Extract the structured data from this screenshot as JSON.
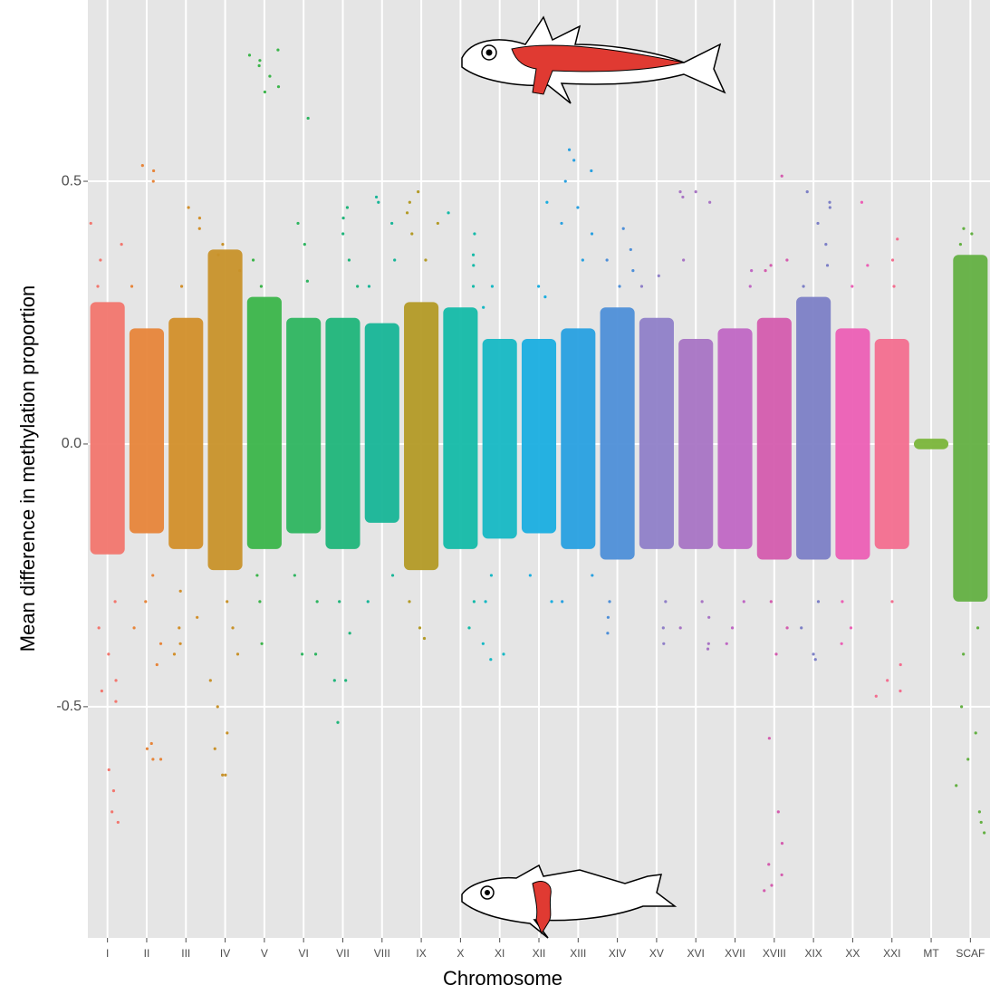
{
  "chart_data": {
    "type": "strip",
    "xlabel": "Chromosome",
    "ylabel": "Mean difference in methylation proportion",
    "categories": [
      "I",
      "II",
      "III",
      "IV",
      "V",
      "VI",
      "VII",
      "VIII",
      "IX",
      "X",
      "XI",
      "XII",
      "XIII",
      "XIV",
      "XV",
      "XVI",
      "XVII",
      "XVIII",
      "XIX",
      "XX",
      "XXI",
      "MT",
      "SCAF"
    ],
    "groups": [
      {
        "color": "#f2766e",
        "core": [
          -0.21,
          0.27
        ],
        "points": [
          0.42,
          0.38,
          0.35,
          0.3,
          -0.3,
          -0.4,
          -0.47,
          -0.49,
          -0.45,
          -0.62,
          -0.66,
          -0.7,
          -0.72,
          -0.35
        ]
      },
      {
        "color": "#e7853a",
        "core": [
          -0.17,
          0.22
        ],
        "points": [
          0.53,
          0.52,
          0.5,
          0.3,
          -0.25,
          -0.3,
          -0.38,
          -0.42,
          -0.35,
          -0.58,
          -0.6,
          -0.6,
          -0.57
        ]
      },
      {
        "color": "#d28f2a",
        "core": [
          -0.2,
          0.24
        ],
        "points": [
          0.45,
          0.43,
          0.41,
          0.3,
          -0.28,
          -0.33,
          -0.38,
          -0.4,
          -0.35
        ]
      },
      {
        "color": "#c8922a",
        "core": [
          -0.24,
          0.37
        ],
        "points": [
          0.38,
          0.36,
          0.33,
          -0.3,
          -0.35,
          -0.4,
          -0.45,
          -0.5,
          -0.55,
          -0.63,
          -0.63,
          -0.58
        ]
      },
      {
        "color": "#3bb54a",
        "core": [
          -0.2,
          0.28
        ],
        "points": [
          0.75,
          0.74,
          0.73,
          0.72,
          0.7,
          0.68,
          0.67,
          0.35,
          0.3,
          -0.25,
          -0.3,
          -0.38
        ]
      },
      {
        "color": "#2eb560",
        "core": [
          -0.17,
          0.24
        ],
        "points": [
          0.42,
          0.38,
          0.31,
          -0.25,
          -0.3,
          -0.4,
          -0.4,
          0.62
        ]
      },
      {
        "color": "#1fb57a",
        "core": [
          -0.2,
          0.24
        ],
        "points": [
          0.45,
          0.43,
          0.4,
          0.35,
          0.3,
          -0.3,
          -0.36,
          -0.45,
          -0.45,
          -0.53
        ]
      },
      {
        "color": "#17b597",
        "core": [
          -0.15,
          0.23
        ],
        "points": [
          0.47,
          0.46,
          0.42,
          0.35,
          0.3,
          -0.25,
          -0.3
        ]
      },
      {
        "color": "#b39a26",
        "core": [
          -0.24,
          0.27
        ],
        "points": [
          0.48,
          0.46,
          0.44,
          0.42,
          0.4,
          0.35,
          -0.3,
          -0.35,
          -0.37
        ]
      },
      {
        "color": "#14baa8",
        "core": [
          -0.2,
          0.26
        ],
        "points": [
          0.44,
          0.4,
          0.36,
          0.34,
          0.3,
          -0.3,
          -0.35
        ]
      },
      {
        "color": "#16b8c4",
        "core": [
          -0.18,
          0.2
        ],
        "points": [
          0.3,
          0.26,
          -0.25,
          -0.3,
          -0.38,
          -0.4,
          -0.41
        ]
      },
      {
        "color": "#1aaee0",
        "core": [
          -0.17,
          0.2
        ],
        "points": [
          0.46,
          0.3,
          0.28,
          -0.25,
          -0.3
        ]
      },
      {
        "color": "#28a0e0",
        "core": [
          -0.2,
          0.22
        ],
        "points": [
          0.56,
          0.54,
          0.52,
          0.5,
          0.45,
          0.42,
          0.4,
          0.35,
          -0.25,
          -0.3
        ]
      },
      {
        "color": "#4e8fd8",
        "core": [
          -0.22,
          0.26
        ],
        "points": [
          0.37,
          0.35,
          0.33,
          0.3,
          0.41,
          -0.3,
          -0.33,
          -0.36
        ]
      },
      {
        "color": "#8f7fc8",
        "core": [
          -0.2,
          0.24
        ],
        "points": [
          0.32,
          0.3,
          -0.3,
          -0.35,
          -0.38
        ]
      },
      {
        "color": "#a874c4",
        "core": [
          -0.2,
          0.2
        ],
        "points": [
          0.48,
          0.48,
          0.47,
          0.46,
          0.35,
          -0.3,
          -0.33,
          -0.35,
          -0.38,
          -0.39
        ]
      },
      {
        "color": "#c067c4",
        "core": [
          -0.2,
          0.22
        ],
        "points": [
          0.33,
          0.3,
          -0.3,
          -0.35,
          -0.38
        ]
      },
      {
        "color": "#d45cae",
        "core": [
          -0.22,
          0.24
        ],
        "points": [
          0.51,
          0.35,
          0.34,
          0.33,
          -0.3,
          -0.35,
          -0.4,
          -0.56,
          -0.7,
          -0.76,
          -0.8,
          -0.82,
          -0.84,
          -0.85
        ]
      },
      {
        "color": "#7c7fc6",
        "core": [
          -0.22,
          0.28
        ],
        "points": [
          0.48,
          0.46,
          0.45,
          0.42,
          0.38,
          0.34,
          0.3,
          -0.3,
          -0.35,
          -0.4,
          -0.41
        ]
      },
      {
        "color": "#ec5fb5",
        "core": [
          -0.22,
          0.22
        ],
        "points": [
          0.46,
          0.34,
          0.3,
          -0.3,
          -0.35,
          -0.38
        ]
      },
      {
        "color": "#f36e8f",
        "core": [
          -0.2,
          0.2
        ],
        "points": [
          0.39,
          0.35,
          0.3,
          -0.3,
          -0.42,
          -0.45,
          -0.47,
          -0.48
        ]
      },
      {
        "color": "#7ab53a",
        "core": [
          -0.01,
          0.01
        ],
        "points": []
      },
      {
        "color": "#63b042",
        "core": [
          -0.3,
          0.36
        ],
        "points": [
          0.41,
          0.4,
          0.38,
          -0.35,
          -0.4,
          -0.5,
          -0.55,
          -0.6,
          -0.65,
          -0.7,
          -0.72,
          -0.74
        ]
      }
    ],
    "ylim": [
      -0.94,
      0.845
    ],
    "yticks": [
      -0.5,
      {
        "value": 0,
        "label": "0.0"
      },
      0.5
    ],
    "grid": true
  }
}
